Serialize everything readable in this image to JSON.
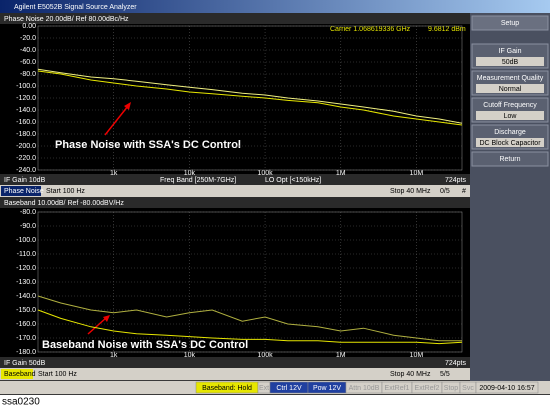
{
  "window": {
    "title": "Agilent E5052B Signal Source Analyzer"
  },
  "panels": [
    {
      "header": "Phase Noise 20.00dB/ Ref 80.00dBc/Hz",
      "carrier": "Carrier 1.068619336 GHz",
      "power": "9.6812 dBm",
      "status": [
        "IF Gain 10dB",
        "Freq Band [250M-7GHz]",
        "LO Opt [<150kHz]",
        "724pts"
      ],
      "footer": {
        "name": "Phase Noise",
        "start": "Start 100 Hz",
        "stop": "Stop 40 MHz",
        "count": "0/5",
        "mark": "#"
      },
      "annotation": "Phase Noise with SSA's DC Control",
      "chart": {
        "type": "line",
        "log_x": true,
        "grid": true,
        "xlim": [
          100,
          40000000
        ],
        "xticks": [
          {
            "value": 1000,
            "label": "1k"
          },
          {
            "value": 10000,
            "label": "10k"
          },
          {
            "value": 100000,
            "label": "100k"
          },
          {
            "value": 1000000,
            "label": "1M"
          },
          {
            "value": 10000000,
            "label": "10M"
          }
        ],
        "ylim": [
          -240,
          0
        ],
        "yticks": [
          {
            "value": 0,
            "label": "0.00"
          },
          {
            "value": -20,
            "label": "-20.0"
          },
          {
            "value": -40,
            "label": "-40.0"
          },
          {
            "value": -60,
            "label": "-60.0"
          },
          {
            "value": -80,
            "label": "-80.0"
          },
          {
            "value": -100,
            "label": "-100.0"
          },
          {
            "value": -120,
            "label": "-120.0"
          },
          {
            "value": -140,
            "label": "-140.0"
          },
          {
            "value": -160,
            "label": "-160.0"
          },
          {
            "value": -180,
            "label": "-180.0"
          },
          {
            "value": -200,
            "label": "-200.0"
          },
          {
            "value": -220,
            "label": "-220.0"
          },
          {
            "value": -240,
            "label": "-240.0"
          }
        ],
        "x": [
          100,
          200,
          500,
          1000,
          2000,
          5000,
          10000,
          20000,
          50000,
          100000,
          200000,
          500000,
          1000000,
          2000000,
          5000000,
          10000000,
          20000000,
          40000000
        ],
        "series": [
          {
            "color": "#f0f080",
            "values": [
              -72,
              -78,
              -85,
              -88,
              -92,
              -98,
              -102,
              -106,
              -112,
              -115,
              -120,
              -125,
              -130,
              -135,
              -142,
              -150,
              -155,
              -162
            ]
          },
          {
            "color": "#e6e600",
            "values": [
              -75,
              -80,
              -90,
              -95,
              -100,
              -105,
              -110,
              -113,
              -117,
              -120,
              -124,
              -128,
              -135,
              -140,
              -150,
              -155,
              -160,
              -165
            ]
          }
        ]
      }
    },
    {
      "header": "Baseband 10.00dB/ Ref -80.00dBV/Hz",
      "status": [
        "IF Gain 50dB",
        "724pts"
      ],
      "footer": {
        "name": "Baseband",
        "start": "Start 100 Hz",
        "stop": "Stop 40 MHz",
        "count": "5/5"
      },
      "annotation": "Baseband Noise with SSA's DC Control",
      "chart": {
        "type": "line",
        "log_x": true,
        "grid": true,
        "xlim": [
          100,
          40000000
        ],
        "xticks": [
          {
            "value": 1000,
            "label": "1k"
          },
          {
            "value": 10000,
            "label": "10k"
          },
          {
            "value": 100000,
            "label": "100k"
          },
          {
            "value": 1000000,
            "label": "1M"
          },
          {
            "value": 10000000,
            "label": "10M"
          }
        ],
        "ylim": [
          -180,
          -80
        ],
        "yticks": [
          {
            "value": -80,
            "label": "-80.0"
          },
          {
            "value": -90,
            "label": "-90.0"
          },
          {
            "value": -100,
            "label": "-100.0"
          },
          {
            "value": -110,
            "label": "-110.0"
          },
          {
            "value": -120,
            "label": "-120.0"
          },
          {
            "value": -130,
            "label": "-130.0"
          },
          {
            "value": -140,
            "label": "-140.0"
          },
          {
            "value": -150,
            "label": "-150.0"
          },
          {
            "value": -160,
            "label": "-160.0"
          },
          {
            "value": -170,
            "label": "-170.0"
          },
          {
            "value": -180,
            "label": "-180.0"
          }
        ],
        "x": [
          100,
          200,
          500,
          1000,
          2000,
          5000,
          10000,
          20000,
          50000,
          100000,
          200000,
          500000,
          1000000,
          2000000,
          5000000,
          10000000,
          20000000,
          40000000
        ],
        "series": [
          {
            "color": "#b0b040",
            "values": [
              -140,
              -145,
              -150,
              -152,
              -150,
              -155,
              -152,
              -150,
              -158,
              -155,
              -160,
              -162,
              -165,
              -163,
              -168,
              -170,
              -172,
              -172
            ]
          },
          {
            "color": "#e6e600",
            "values": [
              -150,
              -156,
              -162,
              -165,
              -167,
              -168,
              -169,
              -170,
              -171,
              -171,
              -172,
              -172,
              -173,
              -173,
              -173,
              -173,
              -174,
              -173
            ]
          }
        ]
      }
    }
  ],
  "softkeys": [
    {
      "label": "Setup"
    },
    {
      "label": "IF Gain",
      "value": "50dB"
    },
    {
      "label": "Measurement Quality",
      "value": "Normal"
    },
    {
      "label": "Cutoff Frequency",
      "value": "Low"
    },
    {
      "label": "Discharge",
      "value": "DC Block Capacitor"
    },
    {
      "label": "Return"
    }
  ],
  "statusbar": [
    "Baseband: Hold",
    "Ext",
    "Ctrl 12V",
    "Pow 12V",
    "Attn 10dB",
    "ExtRef1",
    "ExtRef2",
    "Stop",
    "Svc",
    "2009-04-10 16:57"
  ],
  "caption": "ssa0230"
}
